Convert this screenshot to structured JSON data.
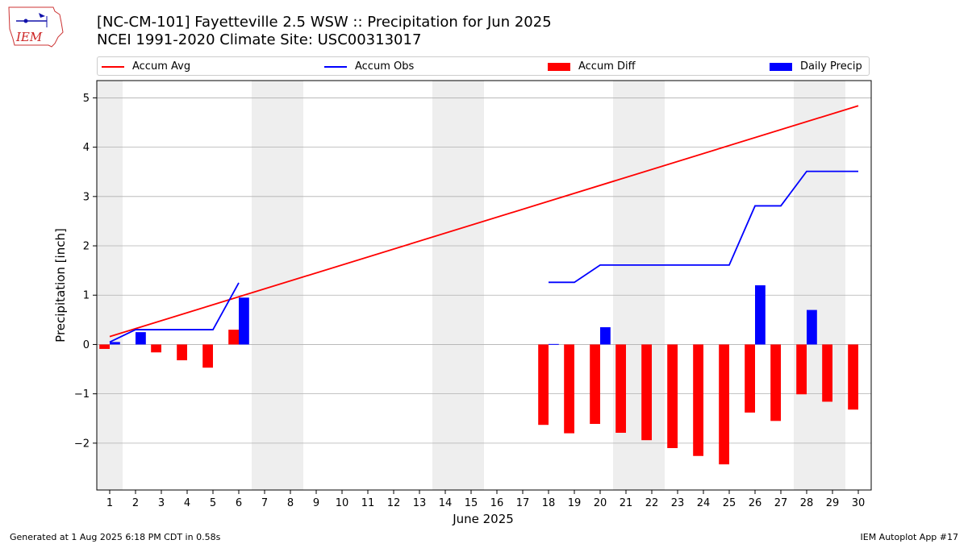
{
  "header": {
    "title_line1": "[NC-CM-101] Fayetteville 2.5 WSW :: Precipitation for Jun 2025",
    "title_line2": "NCEI 1991-2020 Climate Site: USC00313017",
    "logo_text": "IEM"
  },
  "footer": {
    "generated": "Generated at 1 Aug 2025 6:18 PM CDT in 0.58s",
    "app": "IEM Autoplot App #17"
  },
  "colors": {
    "avg": "#ff0000",
    "obs": "#0000ff",
    "diff": "#ff0000",
    "daily": "#0000ff",
    "weekend": "#eeeeee",
    "grid": "#b0b0b0"
  },
  "chart_data": {
    "type": "bar",
    "xlabel": "June 2025",
    "ylabel": "Precipitation [inch]",
    "xlim": [
      0.5,
      30.5
    ],
    "ylim": [
      -2.95,
      5.35
    ],
    "yticks": [
      -2,
      -1,
      0,
      1,
      2,
      3,
      4,
      5
    ],
    "ytick_labels": [
      "−2",
      "−1",
      "0",
      "1",
      "2",
      "3",
      "4",
      "5"
    ],
    "days": [
      1,
      2,
      3,
      4,
      5,
      6,
      7,
      8,
      9,
      10,
      11,
      12,
      13,
      14,
      15,
      16,
      17,
      18,
      19,
      20,
      21,
      22,
      23,
      24,
      25,
      26,
      27,
      28,
      29,
      30
    ],
    "grid": "horizontal",
    "legend_position": "top",
    "shaded_weekend_days": [
      1,
      7,
      8,
      14,
      15,
      21,
      22,
      28,
      29
    ],
    "series": [
      {
        "name": "Accum Avg",
        "kind": "line",
        "x": [
          1,
          30
        ],
        "values": [
          0.16,
          4.84
        ]
      },
      {
        "name": "Accum Obs",
        "kind": "line",
        "segments": [
          {
            "x": [
              1,
              2,
              3,
              4,
              5,
              6
            ],
            "values": [
              0.05,
              0.3,
              0.3,
              0.3,
              0.3,
              1.25
            ]
          },
          {
            "x": [
              18,
              19,
              20,
              21,
              22,
              23,
              24,
              25,
              26,
              27,
              28,
              29,
              30
            ],
            "values": [
              1.26,
              1.26,
              1.61,
              1.61,
              1.61,
              1.61,
              1.61,
              1.61,
              2.81,
              2.81,
              3.51,
              3.51,
              3.51
            ]
          }
        ]
      },
      {
        "name": "Accum Diff",
        "kind": "bar",
        "x": [
          1,
          2,
          3,
          4,
          5,
          6,
          18,
          19,
          20,
          21,
          22,
          23,
          24,
          25,
          26,
          27,
          28,
          29,
          30
        ],
        "values": [
          -0.09,
          0.0,
          -0.16,
          -0.32,
          -0.47,
          0.3,
          -1.63,
          -1.8,
          -1.61,
          -1.79,
          -1.94,
          -2.1,
          -2.26,
          -2.43,
          -1.38,
          -1.55,
          -1.01,
          -1.16,
          -1.32
        ]
      },
      {
        "name": "Daily Precip",
        "kind": "bar",
        "x": [
          1,
          2,
          6,
          18,
          20,
          26,
          28
        ],
        "values": [
          0.05,
          0.25,
          0.95,
          0.01,
          0.35,
          1.2,
          0.7
        ]
      }
    ]
  }
}
